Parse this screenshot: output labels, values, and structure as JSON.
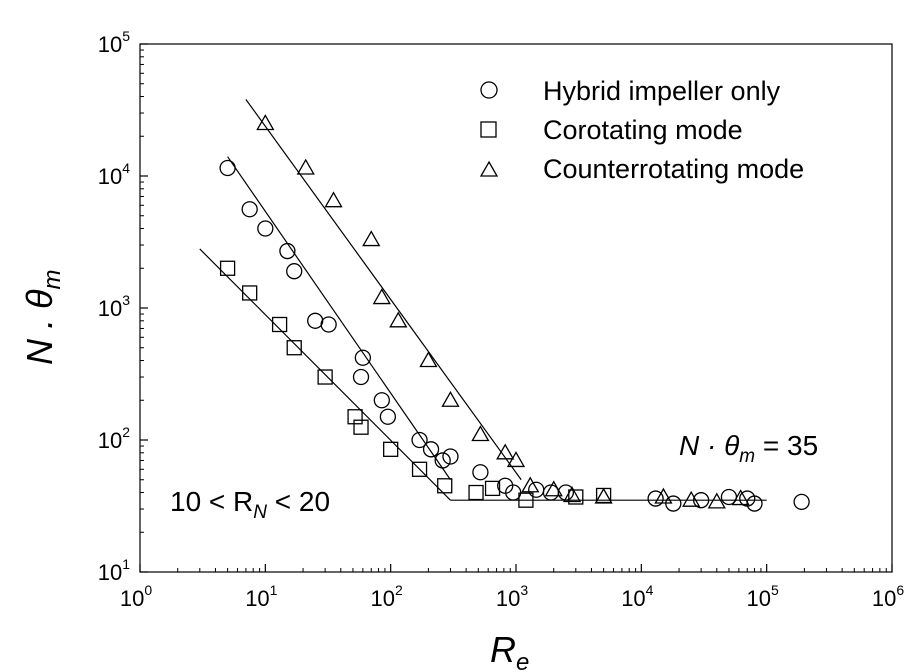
{
  "chart_data": {
    "type": "scatter",
    "x_scale": "log",
    "y_scale": "log",
    "xlim": [
      1,
      1000000
    ],
    "ylim": [
      10,
      100000
    ],
    "x_ticks": [
      {
        "base": "10",
        "exp": "0"
      },
      {
        "base": "10",
        "exp": "1"
      },
      {
        "base": "10",
        "exp": "2"
      },
      {
        "base": "10",
        "exp": "3"
      },
      {
        "base": "10",
        "exp": "4"
      },
      {
        "base": "10",
        "exp": "5"
      },
      {
        "base": "10",
        "exp": "6"
      }
    ],
    "y_ticks": [
      {
        "base": "10",
        "exp": "1"
      },
      {
        "base": "10",
        "exp": "2"
      },
      {
        "base": "10",
        "exp": "3"
      },
      {
        "base": "10",
        "exp": "4"
      },
      {
        "base": "10",
        "exp": "5"
      }
    ],
    "xlabel": {
      "main": "R",
      "sub": "e"
    },
    "ylabel": {
      "main": "N . θ",
      "sub": "m"
    },
    "legend_position": "top-right",
    "series": [
      {
        "name": "Hybrid impeller only",
        "marker": "circle",
        "points": [
          [
            5,
            11500
          ],
          [
            7.5,
            5600
          ],
          [
            10,
            4000
          ],
          [
            15,
            2700
          ],
          [
            17,
            1900
          ],
          [
            25,
            800
          ],
          [
            32,
            750
          ],
          [
            60,
            420
          ],
          [
            58,
            300
          ],
          [
            85,
            200
          ],
          [
            95,
            150
          ],
          [
            170,
            100
          ],
          [
            210,
            85
          ],
          [
            260,
            70
          ],
          [
            300,
            75
          ],
          [
            520,
            57
          ],
          [
            820,
            45
          ],
          [
            950,
            40
          ],
          [
            1450,
            42
          ],
          [
            1900,
            40
          ],
          [
            2500,
            40
          ],
          [
            13000,
            36
          ],
          [
            18000,
            33
          ],
          [
            30000,
            35
          ],
          [
            50000,
            37
          ],
          [
            70000,
            36
          ],
          [
            80000,
            33
          ],
          [
            190000,
            34
          ]
        ],
        "fit_line": [
          [
            5,
            14000
          ],
          [
            300,
            50
          ]
        ]
      },
      {
        "name": "Corotating mode",
        "marker": "square",
        "points": [
          [
            5,
            2000
          ],
          [
            7.5,
            1300
          ],
          [
            13,
            750
          ],
          [
            17,
            500
          ],
          [
            30,
            300
          ],
          [
            52,
            150
          ],
          [
            58,
            125
          ],
          [
            100,
            85
          ],
          [
            170,
            60
          ],
          [
            270,
            45
          ],
          [
            480,
            40
          ],
          [
            650,
            43
          ],
          [
            1200,
            35
          ],
          [
            3000,
            37
          ],
          [
            5000,
            38
          ]
        ],
        "fit_line": [
          [
            3,
            2800
          ],
          [
            300,
            35
          ]
        ]
      },
      {
        "name": "Counterrotating mode",
        "marker": "triangle",
        "points": [
          [
            10,
            25000
          ],
          [
            21,
            11500
          ],
          [
            35,
            6500
          ],
          [
            70,
            3300
          ],
          [
            85,
            1200
          ],
          [
            115,
            800
          ],
          [
            200,
            400
          ],
          [
            300,
            200
          ],
          [
            520,
            110
          ],
          [
            820,
            80
          ],
          [
            1000,
            70
          ],
          [
            1300,
            45
          ],
          [
            2000,
            42
          ],
          [
            2800,
            38
          ],
          [
            5000,
            37
          ],
          [
            15000,
            37
          ],
          [
            25000,
            35
          ],
          [
            40000,
            34
          ],
          [
            62000,
            36
          ]
        ],
        "fit_line": [
          [
            7,
            38000
          ],
          [
            1100,
            50
          ]
        ]
      }
    ],
    "plateau_line": [
      [
        300,
        35
      ],
      [
        100000,
        35
      ]
    ],
    "annotations": {
      "plateau": {
        "left": "N · θ",
        "sub": "m",
        "right": " = 35"
      },
      "range": {
        "left": "10 < R",
        "sub": "N",
        "right": " < 20"
      }
    }
  }
}
